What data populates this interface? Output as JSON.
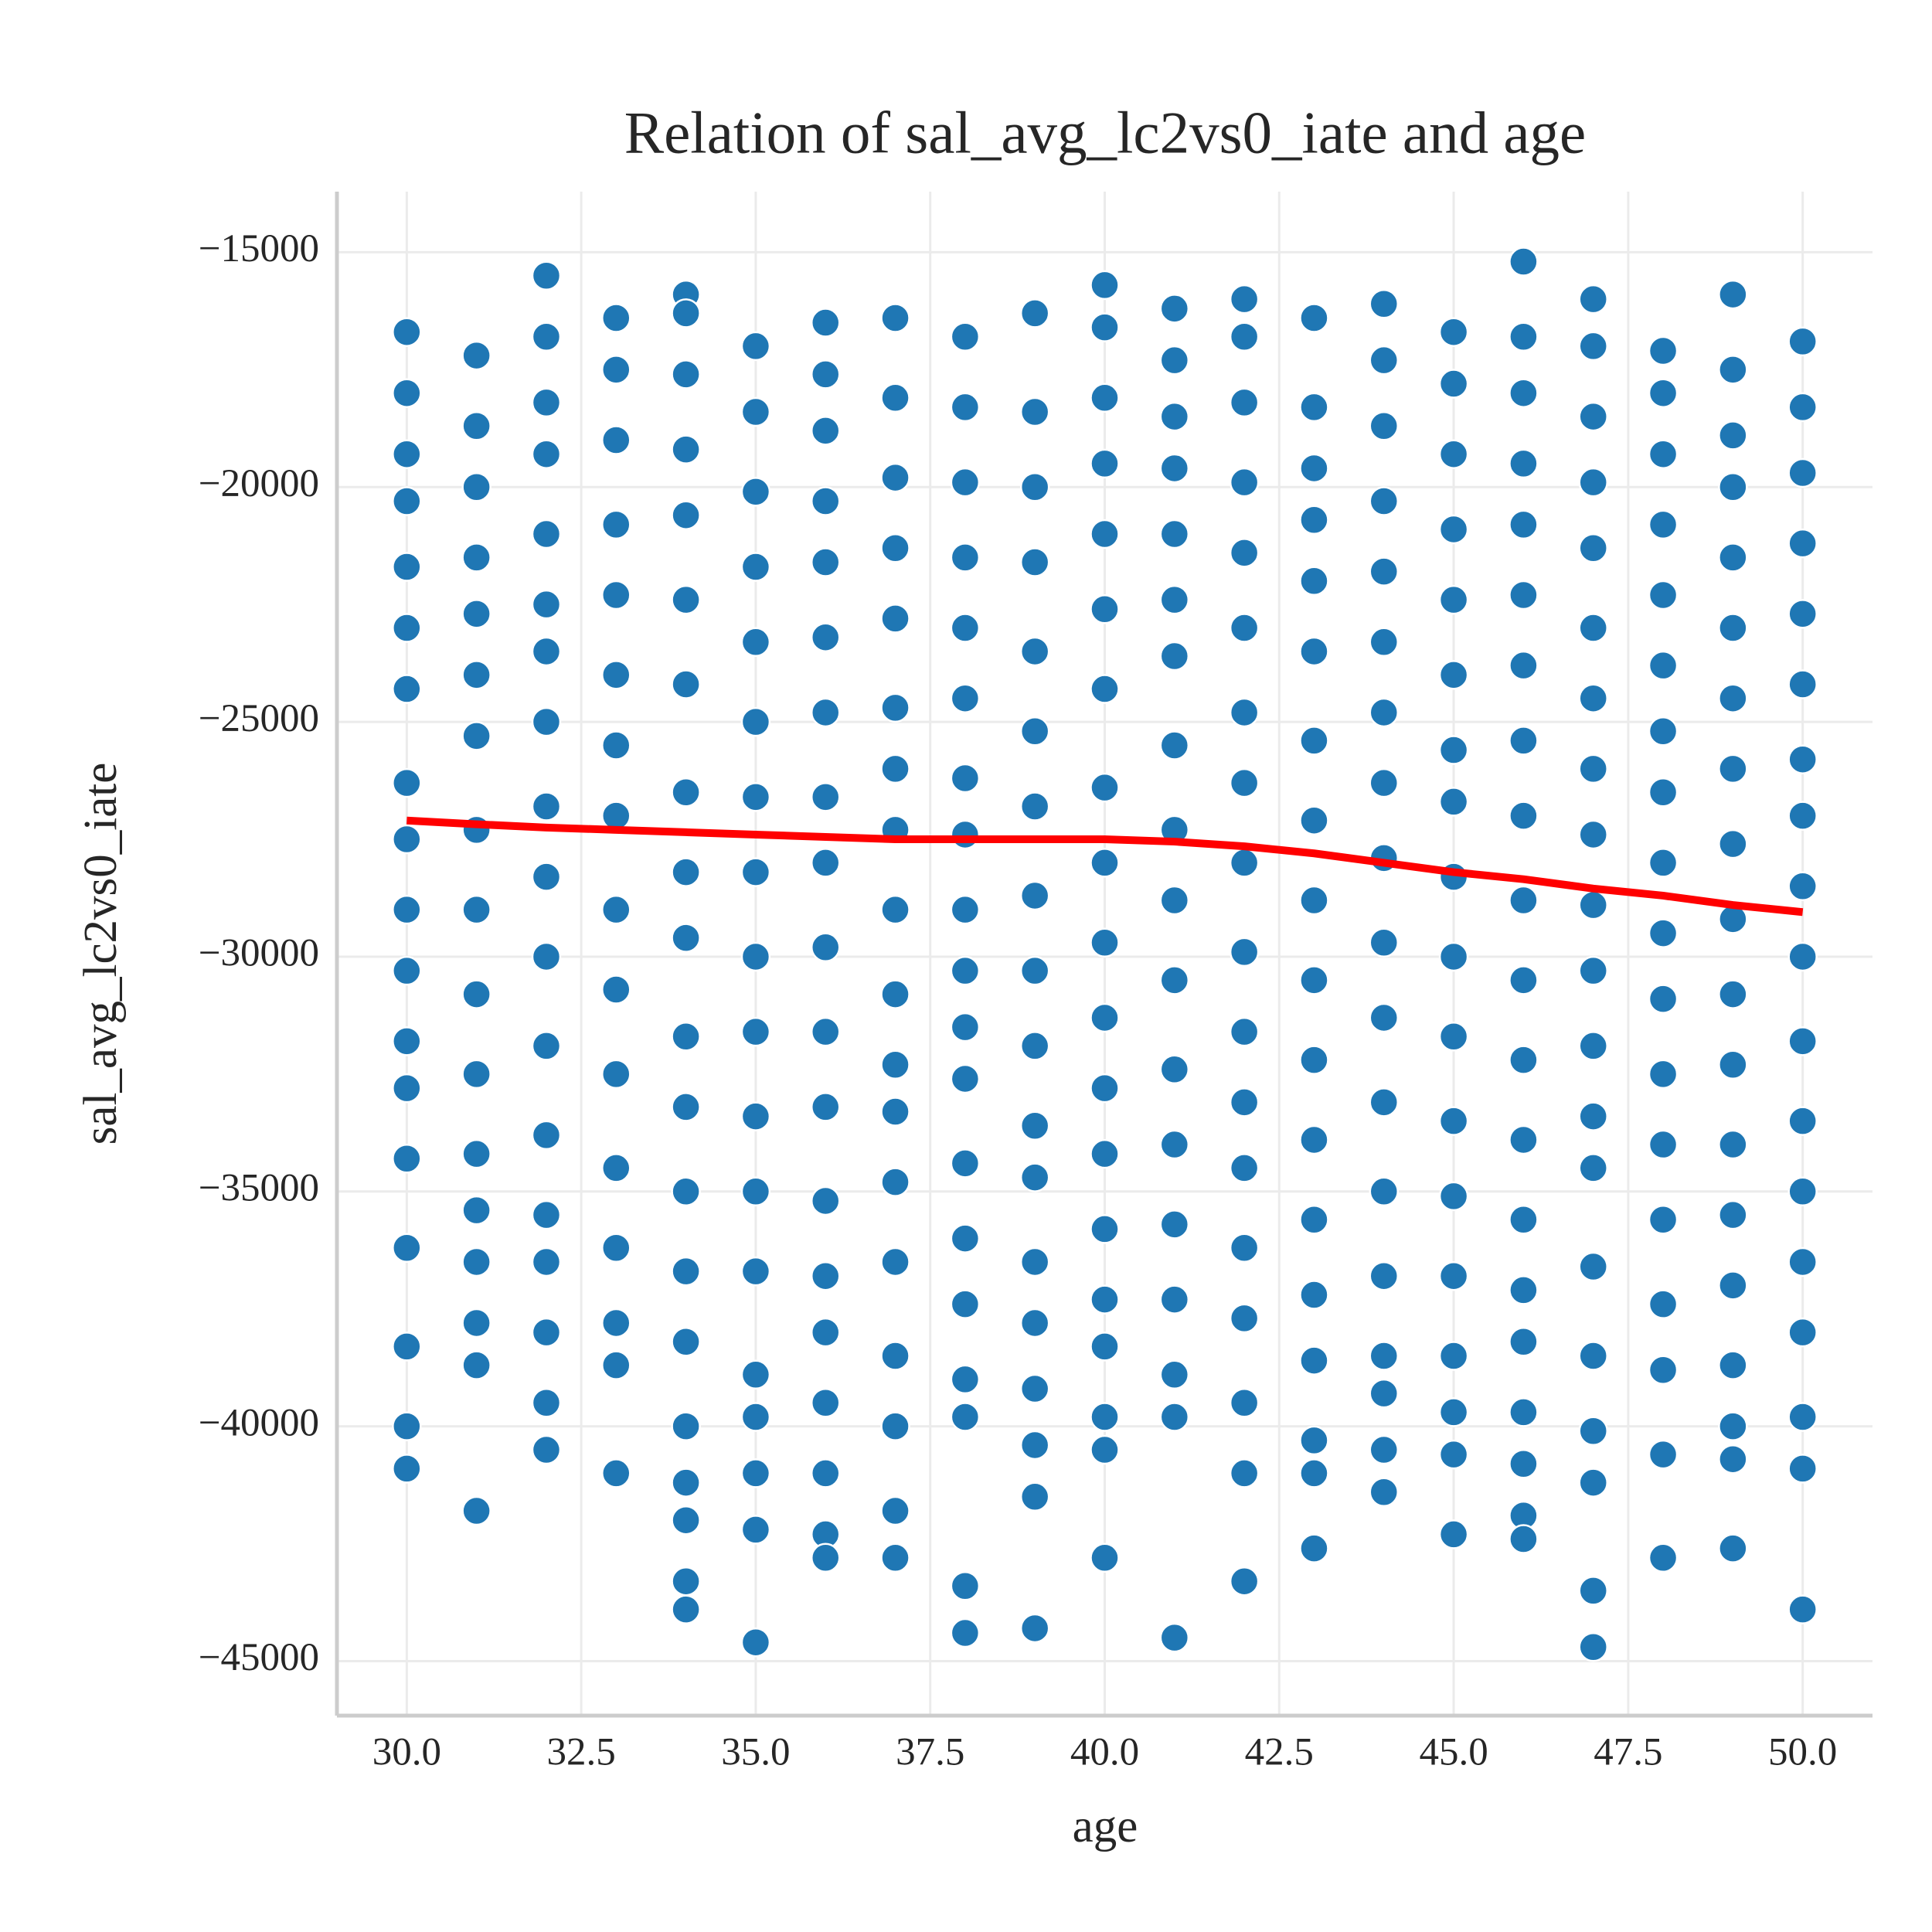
{
  "chart_data": {
    "type": "scatter",
    "title": "Relation of sal_avg_lc2vs0_iate and age",
    "x_label": "age",
    "y_label": "sal_avg_lc2vs0_iate",
    "xlim": [
      29,
      51
    ],
    "ylim": [
      -46160,
      -13710
    ],
    "xticks": [
      {
        "value": 30,
        "label": "30.0"
      },
      {
        "value": 32.5,
        "label": "32.5"
      },
      {
        "value": 35,
        "label": "35.0"
      },
      {
        "value": 37.5,
        "label": "37.5"
      },
      {
        "value": 40,
        "label": "40.0"
      },
      {
        "value": 42.5,
        "label": "42.5"
      },
      {
        "value": 45,
        "label": "45.0"
      },
      {
        "value": 47.5,
        "label": "47.5"
      },
      {
        "value": 50,
        "label": "50.0"
      }
    ],
    "yticks": [
      {
        "value": -15000,
        "label": "−15000"
      },
      {
        "value": -20000,
        "label": "−20000"
      },
      {
        "value": -25000,
        "label": "−25000"
      },
      {
        "value": -30000,
        "label": "−30000"
      },
      {
        "value": -35000,
        "label": "−35000"
      },
      {
        "value": -40000,
        "label": "−40000"
      },
      {
        "value": -45000,
        "label": "−45000"
      }
    ],
    "grid": true,
    "color": "#1f77b4",
    "groups": [
      {
        "x": 30,
        "values": [
          -16700,
          -18000,
          -19300,
          -20300,
          -21700,
          -23000,
          -24300,
          -26300,
          -27500,
          -29000,
          -30300,
          -31800,
          -32800,
          -34300,
          -36200,
          -38300,
          -40000,
          -40900
        ]
      },
      {
        "x": 31,
        "values": [
          -17200,
          -18700,
          -20000,
          -21500,
          -22700,
          -24000,
          -25300,
          -27300,
          -29000,
          -30800,
          -32500,
          -34200,
          -35400,
          -36500,
          -37800,
          -38700,
          -41800
        ]
      },
      {
        "x": 32,
        "values": [
          -15500,
          -16800,
          -18200,
          -19300,
          -21000,
          -22500,
          -23500,
          -25000,
          -26800,
          -28300,
          -30000,
          -31900,
          -33800,
          -35500,
          -36500,
          -38000,
          -39500,
          -40500
        ]
      },
      {
        "x": 33,
        "values": [
          -16400,
          -17500,
          -19000,
          -20800,
          -22300,
          -24000,
          -25500,
          -27000,
          -29000,
          -30700,
          -32500,
          -34500,
          -36200,
          -37800,
          -38700,
          -41000
        ]
      },
      {
        "x": 34,
        "values": [
          -15900,
          -16300,
          -17600,
          -19200,
          -20600,
          -22400,
          -24200,
          -26500,
          -28200,
          -29600,
          -31700,
          -33200,
          -35000,
          -36700,
          -38200,
          -40000,
          -41200,
          -42000,
          -43300,
          -43900
        ]
      },
      {
        "x": 35,
        "values": [
          -17000,
          -18400,
          -20100,
          -21700,
          -23300,
          -25000,
          -26600,
          -28200,
          -30000,
          -31600,
          -33400,
          -35000,
          -36700,
          -38900,
          -39800,
          -41000,
          -42200,
          -44600
        ]
      },
      {
        "x": 36,
        "values": [
          -16500,
          -17600,
          -18800,
          -20300,
          -21600,
          -23200,
          -24800,
          -26600,
          -28000,
          -29800,
          -31600,
          -33200,
          -35200,
          -36800,
          -38000,
          -39500,
          -41000,
          -42300,
          -42800
        ]
      },
      {
        "x": 37,
        "values": [
          -16400,
          -18100,
          -19800,
          -21300,
          -22800,
          -24700,
          -26000,
          -27300,
          -29000,
          -30800,
          -32300,
          -33300,
          -34800,
          -36500,
          -38500,
          -40000,
          -41800,
          -42800
        ]
      },
      {
        "x": 38,
        "values": [
          -16800,
          -18300,
          -19900,
          -21500,
          -23000,
          -24500,
          -26200,
          -27400,
          -29000,
          -30300,
          -31500,
          -32600,
          -34400,
          -36000,
          -37400,
          -39000,
          -39800,
          -43400,
          -44400
        ]
      },
      {
        "x": 39,
        "values": [
          -16300,
          -18400,
          -20000,
          -21600,
          -23500,
          -25200,
          -26800,
          -28700,
          -30300,
          -31900,
          -33600,
          -34700,
          -36500,
          -37800,
          -39200,
          -40400,
          -41500,
          -44300
        ]
      },
      {
        "x": 40,
        "values": [
          -15700,
          -16600,
          -18100,
          -19500,
          -21000,
          -22600,
          -24300,
          -26400,
          -28000,
          -29700,
          -31300,
          -32800,
          -34200,
          -35800,
          -37300,
          -38300,
          -39800,
          -40500,
          -42800
        ]
      },
      {
        "x": 41,
        "values": [
          -16200,
          -17300,
          -18500,
          -19600,
          -21000,
          -22400,
          -23600,
          -25500,
          -27300,
          -28800,
          -30500,
          -32400,
          -34000,
          -35700,
          -37300,
          -38900,
          -39800,
          -44500
        ]
      },
      {
        "x": 42,
        "values": [
          -16000,
          -16800,
          -18200,
          -19900,
          -21400,
          -23000,
          -24800,
          -26300,
          -28000,
          -29900,
          -31600,
          -33100,
          -34500,
          -36200,
          -37700,
          -39500,
          -41000,
          -43300
        ]
      },
      {
        "x": 43,
        "values": [
          -16400,
          -18300,
          -19600,
          -20700,
          -22000,
          -23500,
          -25400,
          -27100,
          -28800,
          -30500,
          -32200,
          -33900,
          -35600,
          -37200,
          -38600,
          -40300,
          -41000,
          -42600
        ]
      },
      {
        "x": 44,
        "values": [
          -16100,
          -17300,
          -18700,
          -20300,
          -21800,
          -23300,
          -24800,
          -26300,
          -27900,
          -29700,
          -31300,
          -33100,
          -35000,
          -36800,
          -38500,
          -39300,
          -40500,
          -41400
        ]
      },
      {
        "x": 45,
        "values": [
          -16700,
          -17800,
          -19300,
          -20900,
          -22400,
          -24000,
          -25600,
          -26700,
          -28300,
          -30000,
          -31700,
          -33500,
          -35100,
          -36800,
          -38500,
          -39700,
          -40600,
          -42300
        ]
      },
      {
        "x": 46,
        "values": [
          -15200,
          -16800,
          -18000,
          -19500,
          -20800,
          -22300,
          -23800,
          -25400,
          -27000,
          -28800,
          -30500,
          -32200,
          -33900,
          -35600,
          -37100,
          -38200,
          -39700,
          -40800,
          -41900,
          -42400
        ]
      },
      {
        "x": 47,
        "values": [
          -16000,
          -17000,
          -18500,
          -19900,
          -21300,
          -23000,
          -24500,
          -26000,
          -27400,
          -28900,
          -30300,
          -31900,
          -33400,
          -34500,
          -36600,
          -38500,
          -40100,
          -41200,
          -43500,
          -44700
        ]
      },
      {
        "x": 48,
        "values": [
          -17100,
          -18000,
          -19300,
          -20800,
          -22300,
          -23800,
          -25200,
          -26500,
          -28000,
          -29500,
          -30900,
          -32500,
          -34000,
          -35600,
          -37400,
          -38800,
          -40600,
          -42800
        ]
      },
      {
        "x": 49,
        "values": [
          -15900,
          -17500,
          -18900,
          -20000,
          -21500,
          -23000,
          -24500,
          -26000,
          -27600,
          -29200,
          -30800,
          -32300,
          -34000,
          -35500,
          -37000,
          -38700,
          -40000,
          -40700,
          -42600
        ]
      },
      {
        "x": 50,
        "values": [
          -16900,
          -18300,
          -19700,
          -21200,
          -22700,
          -24200,
          -25800,
          -27000,
          -28500,
          -30000,
          -31800,
          -33500,
          -35000,
          -36500,
          -38000,
          -39800,
          -40900,
          -43900
        ]
      }
    ],
    "trend": {
      "color": "#ff0000",
      "x": [
        30,
        31,
        32,
        33,
        34,
        35,
        36,
        37,
        38,
        39,
        40,
        41,
        42,
        43,
        44,
        45,
        46,
        47,
        48,
        49,
        50
      ],
      "values": [
        -27100,
        -27180,
        -27250,
        -27300,
        -27350,
        -27400,
        -27450,
        -27500,
        -27500,
        -27500,
        -27500,
        -27550,
        -27650,
        -27800,
        -28000,
        -28200,
        -28350,
        -28550,
        -28700,
        -28900,
        -29050
      ]
    }
  }
}
